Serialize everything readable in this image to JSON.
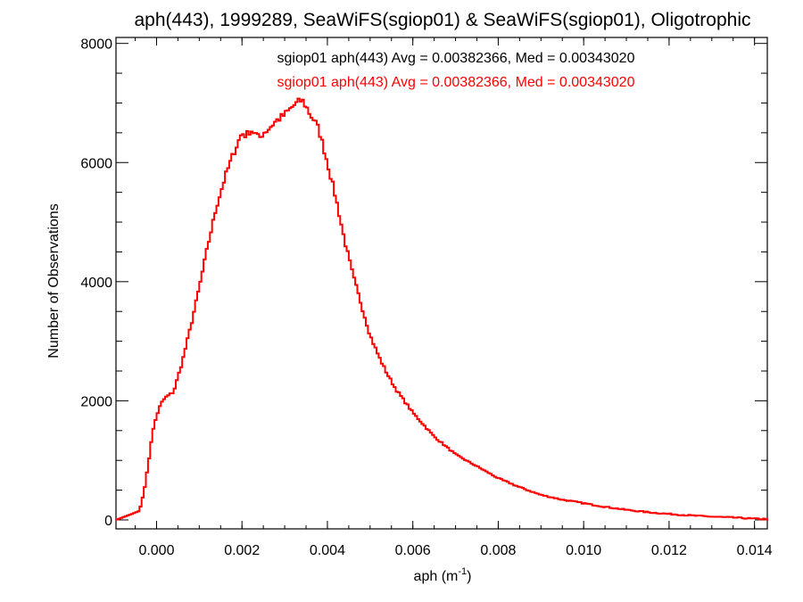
{
  "chart_data": {
    "type": "line",
    "title": "aph(443), 1999289, SeaWiFS(sgiop01) & SeaWiFS(sgiop01), Oligotrophic",
    "xlabel_main": "aph (m",
    "xlabel_sup": "-1",
    "xlabel_close": ")",
    "ylabel": "Number of Observations",
    "xlim": [
      -0.00095,
      0.0143
    ],
    "ylim": [
      -150,
      8100
    ],
    "xticks": [
      0.0,
      0.002,
      0.004,
      0.006,
      0.008,
      0.01,
      0.012,
      0.014
    ],
    "xtick_labels": [
      "0.000",
      "0.002",
      "0.004",
      "0.006",
      "0.008",
      "0.010",
      "0.012",
      "0.014"
    ],
    "yticks": [
      0,
      2000,
      4000,
      6000,
      8000
    ],
    "ytick_labels": [
      "0",
      "2000",
      "4000",
      "6000",
      "8000"
    ],
    "grid": false,
    "annotations": [
      {
        "text": "sgiop01 aph(443) Avg = 0.00382366, Med = 0.00343020",
        "color": "#000000"
      },
      {
        "text": "sgiop01 aph(443) Avg = 0.00382366, Med = 0.00343020",
        "color": "#ff0000"
      }
    ],
    "series": [
      {
        "color": "#ff0000",
        "style": "step",
        "x": [
          -0.00095,
          -0.0004,
          -0.0003,
          -0.0002,
          -0.0001,
          0.0,
          0.0001,
          0.0002,
          0.0003,
          0.0004,
          0.0006,
          0.0008,
          0.001,
          0.0012,
          0.0014,
          0.0016,
          0.0018,
          0.002,
          0.0021,
          0.0022,
          0.0023,
          0.0024,
          0.0025,
          0.0026,
          0.0028,
          0.003,
          0.0032,
          0.0033,
          0.0034,
          0.0035,
          0.0036,
          0.0037,
          0.0038,
          0.004,
          0.0042,
          0.0044,
          0.0046,
          0.0048,
          0.005,
          0.0052,
          0.0054,
          0.0056,
          0.0058,
          0.006,
          0.0065,
          0.007,
          0.0075,
          0.008,
          0.0085,
          0.009,
          0.0095,
          0.01,
          0.0105,
          0.011,
          0.0115,
          0.012,
          0.0125,
          0.013,
          0.0135,
          0.014,
          0.0143
        ],
        "y": [
          0,
          150,
          450,
          900,
          1450,
          1750,
          1950,
          2050,
          2100,
          2150,
          2650,
          3250,
          3900,
          4600,
          5250,
          5750,
          6150,
          6500,
          6450,
          6550,
          6500,
          6400,
          6500,
          6550,
          6700,
          6800,
          6950,
          7000,
          7050,
          6950,
          6800,
          6700,
          6550,
          6000,
          5400,
          4700,
          4100,
          3600,
          3100,
          2750,
          2450,
          2200,
          2000,
          1800,
          1400,
          1100,
          900,
          700,
          550,
          420,
          340,
          280,
          220,
          170,
          130,
          100,
          75,
          55,
          40,
          20,
          15
        ]
      }
    ]
  }
}
